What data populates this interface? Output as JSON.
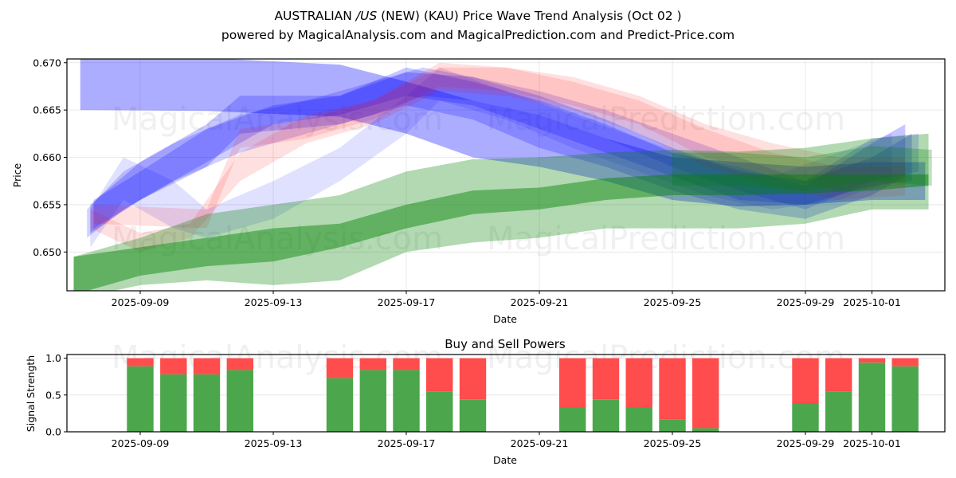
{
  "header": {
    "title": "AUSTRALIAN /US (NEW) (KAU) Price Wave Trend Analysis (Oct 02 )",
    "title_prefix": "AUSTRALIAN ",
    "title_italic": "/US",
    "title_suffix": " (NEW) (KAU) Price Wave Trend Analysis (Oct 02 )",
    "subtitle": "powered by MagicalAnalysis.com and MagicalPrediction.com and Predict-Price.com"
  },
  "watermarks": [
    "MagicalAnalysis.com",
    "MagicalPrediction.com"
  ],
  "colors": {
    "blue": "#0000ff",
    "red": "#ff0000",
    "green": "#008000",
    "buy": "#4ca64c",
    "sell": "#ff4c4c"
  },
  "chart_data": [
    {
      "type": "area",
      "title": "",
      "xlabel": "Date",
      "ylabel": "Price",
      "x_start": "2025-09-06.8",
      "x_end": "2025-10-03.2",
      "ylim": [
        0.6459,
        0.6704
      ],
      "grid": true,
      "x_ticks": [
        "2025-09-09",
        "2025-09-13",
        "2025-09-17",
        "2025-09-21",
        "2025-09-25",
        "2025-09-29",
        "2025-10-01"
      ],
      "y_ticks": [
        "0.650",
        "0.655",
        "0.660",
        "0.665",
        "0.670"
      ],
      "note": "Each band is [day_offset_from_2025-09-07, low, high]",
      "bands": [
        {
          "name": "blue-wide-top",
          "color": "blue",
          "opacity": 0.32,
          "points": [
            [
              0.2,
              0.665,
              0.6705
            ],
            [
              4,
              0.6649,
              0.6705
            ],
            [
              8,
              0.6643,
              0.6698
            ],
            [
              10,
              0.6625,
              0.668
            ],
            [
              12,
              0.66,
              0.666
            ],
            [
              14,
              0.659,
              0.6645
            ],
            [
              16,
              0.6575,
              0.662
            ],
            [
              18,
              0.6555,
              0.66
            ],
            [
              20,
              0.6548,
              0.6595
            ],
            [
              22,
              0.655,
              0.659
            ],
            [
              24,
              0.6555,
              0.6595
            ],
            [
              25.6,
              0.6555,
              0.6595
            ]
          ]
        },
        {
          "name": "blue-trend-1",
          "color": "blue",
          "opacity": 0.22,
          "points": [
            [
              0.5,
              0.652,
              0.655
            ],
            [
              2,
              0.6555,
              0.6595
            ],
            [
              4,
              0.659,
              0.6635
            ],
            [
              5,
              0.6625,
              0.6665
            ],
            [
              8,
              0.6635,
              0.6665
            ],
            [
              10,
              0.6655,
              0.6695
            ],
            [
              12,
              0.664,
              0.668
            ],
            [
              14,
              0.661,
              0.666
            ],
            [
              16,
              0.659,
              0.6635
            ],
            [
              18,
              0.6565,
              0.6605
            ],
            [
              20,
              0.6545,
              0.659
            ],
            [
              22,
              0.6535,
              0.657
            ],
            [
              24,
              0.656,
              0.6615
            ],
            [
              25,
              0.658,
              0.6635
            ]
          ]
        },
        {
          "name": "blue-trend-2",
          "color": "blue",
          "opacity": 0.22,
          "points": [
            [
              0.6,
              0.6525,
              0.6555
            ],
            [
              2,
              0.6555,
              0.6585
            ],
            [
              4,
              0.6595,
              0.663
            ],
            [
              6,
              0.6635,
              0.6655
            ],
            [
              8,
              0.6645,
              0.6665
            ],
            [
              10,
              0.6665,
              0.669
            ],
            [
              12,
              0.6655,
              0.6685
            ],
            [
              14,
              0.663,
              0.6665
            ],
            [
              16,
              0.6605,
              0.664
            ],
            [
              18,
              0.658,
              0.661
            ],
            [
              20,
              0.6555,
              0.6585
            ],
            [
              22,
              0.655,
              0.6575
            ],
            [
              24,
              0.657,
              0.66
            ],
            [
              25.2,
              0.6575,
              0.6625
            ]
          ]
        },
        {
          "name": "blue-trend-3",
          "color": "blue",
          "opacity": 0.18,
          "points": [
            [
              0.4,
              0.6515,
              0.6545
            ],
            [
              1.5,
              0.6545,
              0.6585
            ],
            [
              3,
              0.6575,
              0.6615
            ],
            [
              5,
              0.6605,
              0.6645
            ],
            [
              7,
              0.6625,
              0.666
            ],
            [
              9,
              0.6645,
              0.668
            ],
            [
              10.5,
              0.6665,
              0.6695
            ],
            [
              12,
              0.666,
              0.6685
            ],
            [
              14,
              0.6645,
              0.667
            ],
            [
              16,
              0.662,
              0.665
            ],
            [
              18,
              0.659,
              0.6625
            ],
            [
              20,
              0.6565,
              0.66
            ],
            [
              22,
              0.6545,
              0.6575
            ],
            [
              24,
              0.6575,
              0.662
            ],
            [
              25.4,
              0.6585,
              0.6625
            ]
          ]
        },
        {
          "name": "blue-faint-1",
          "color": "blue",
          "opacity": 0.12,
          "points": [
            [
              0.5,
              0.6505,
              0.6545
            ],
            [
              1.5,
              0.6555,
              0.66
            ],
            [
              3,
              0.6525,
              0.6575
            ],
            [
              4,
              0.6515,
              0.6545
            ],
            [
              6,
              0.6535,
              0.6575
            ],
            [
              8,
              0.6575,
              0.661
            ],
            [
              10,
              0.6625,
              0.6665
            ],
            [
              11,
              0.666,
              0.6695
            ],
            [
              13,
              0.664,
              0.667
            ],
            [
              15,
              0.661,
              0.6645
            ],
            [
              17,
              0.6585,
              0.662
            ],
            [
              19,
              0.656,
              0.6595
            ],
            [
              21,
              0.6545,
              0.658
            ],
            [
              23,
              0.6555,
              0.6605
            ],
            [
              24.6,
              0.6575,
              0.6625
            ]
          ]
        },
        {
          "name": "pink-1",
          "color": "red",
          "opacity": 0.12,
          "points": [
            [
              0.5,
              0.6525,
              0.6545
            ],
            [
              2,
              0.65,
              0.652
            ],
            [
              3.5,
              0.6515,
              0.653
            ],
            [
              5,
              0.6575,
              0.6605
            ],
            [
              7,
              0.6615,
              0.6645
            ],
            [
              9,
              0.6635,
              0.666
            ],
            [
              11,
              0.667,
              0.6695
            ],
            [
              13,
              0.6665,
              0.6695
            ],
            [
              15,
              0.665,
              0.668
            ],
            [
              17,
              0.6625,
              0.666
            ],
            [
              19,
              0.659,
              0.663
            ],
            [
              21,
              0.657,
              0.6605
            ],
            [
              23,
              0.6555,
              0.659
            ],
            [
              25,
              0.656,
              0.659
            ]
          ]
        },
        {
          "name": "pink-2",
          "color": "red",
          "opacity": 0.12,
          "points": [
            [
              0.6,
              0.653,
              0.655
            ],
            [
              4,
              0.6525,
              0.6545
            ],
            [
              5,
              0.661,
              0.663
            ],
            [
              7,
              0.662,
              0.664
            ],
            [
              9,
              0.664,
              0.666
            ],
            [
              11,
              0.6675,
              0.67
            ],
            [
              13,
              0.667,
              0.6695
            ],
            [
              15,
              0.6655,
              0.6685
            ],
            [
              17,
              0.6635,
              0.6665
            ],
            [
              19,
              0.66,
              0.6635
            ],
            [
              21,
              0.658,
              0.6615
            ],
            [
              23,
              0.6565,
              0.66
            ],
            [
              25,
              0.657,
              0.66
            ]
          ]
        },
        {
          "name": "green-wide",
          "color": "green",
          "opacity": 0.3,
          "points": [
            [
              0,
              0.645,
              0.6495
            ],
            [
              2,
              0.6465,
              0.6515
            ],
            [
              4,
              0.647,
              0.654
            ],
            [
              6,
              0.6465,
              0.655
            ],
            [
              8,
              0.647,
              0.656
            ],
            [
              10,
              0.65,
              0.6585
            ],
            [
              12,
              0.651,
              0.6598
            ],
            [
              14,
              0.6515,
              0.66
            ],
            [
              16,
              0.6525,
              0.6605
            ],
            [
              18,
              0.6525,
              0.6608
            ],
            [
              20,
              0.6525,
              0.6606
            ],
            [
              22,
              0.653,
              0.661
            ],
            [
              24,
              0.6545,
              0.662
            ],
            [
              25.7,
              0.6545,
              0.6625
            ]
          ]
        },
        {
          "name": "green-core",
          "color": "green",
          "opacity": 0.45,
          "points": [
            [
              0,
              0.6455,
              0.6495
            ],
            [
              2,
              0.6475,
              0.6505
            ],
            [
              4,
              0.6485,
              0.6515
            ],
            [
              6,
              0.649,
              0.6525
            ],
            [
              8,
              0.6505,
              0.653
            ],
            [
              10,
              0.6525,
              0.655
            ],
            [
              12,
              0.654,
              0.6565
            ],
            [
              14,
              0.6545,
              0.6568
            ],
            [
              16,
              0.6555,
              0.6578
            ],
            [
              18,
              0.656,
              0.6582
            ],
            [
              20,
              0.656,
              0.6582
            ],
            [
              22,
              0.6562,
              0.6582
            ],
            [
              24,
              0.6565,
              0.6582
            ],
            [
              25.7,
              0.657,
              0.6582
            ]
          ]
        },
        {
          "name": "green-upper",
          "color": "green",
          "opacity": 0.25,
          "points": [
            [
              18,
              0.657,
              0.6605
            ],
            [
              20,
              0.657,
              0.6605
            ],
            [
              22,
              0.6565,
              0.66
            ],
            [
              24,
              0.6575,
              0.6612
            ],
            [
              25.8,
              0.657,
              0.6608
            ]
          ]
        }
      ]
    },
    {
      "type": "bar",
      "title": "Buy and Sell Powers",
      "xlabel": "Date",
      "ylabel": "Signal Strength",
      "ylim": [
        0,
        1.05
      ],
      "grid": true,
      "x_ticks": [
        "2025-09-09",
        "2025-09-13",
        "2025-09-17",
        "2025-09-21",
        "2025-09-25",
        "2025-09-29",
        "2025-10-01"
      ],
      "y_ticks": [
        "0.0",
        "0.5",
        "1.0"
      ],
      "categories": [
        "2025-09-09",
        "2025-09-10",
        "2025-09-11",
        "2025-09-12",
        "2025-09-15",
        "2025-09-16",
        "2025-09-17",
        "2025-09-18",
        "2025-09-19",
        "2025-09-22",
        "2025-09-23",
        "2025-09-24",
        "2025-09-25",
        "2025-09-26",
        "2025-09-29",
        "2025-09-30",
        "2025-10-01",
        "2025-10-02"
      ],
      "day_offsets": [
        2,
        3,
        4,
        5,
        8,
        9,
        10,
        11,
        12,
        15,
        16,
        17,
        18,
        19,
        22,
        23,
        24,
        25
      ],
      "series": [
        {
          "name": "Buy",
          "color": "buy",
          "values": [
            0.89,
            0.78,
            0.78,
            0.84,
            0.73,
            0.84,
            0.84,
            0.55,
            0.44,
            0.33,
            0.44,
            0.33,
            0.17,
            0.05,
            0.39,
            0.55,
            0.94,
            0.89
          ]
        },
        {
          "name": "Sell",
          "color": "sell",
          "values": [
            0.11,
            0.22,
            0.22,
            0.16,
            0.27,
            0.16,
            0.16,
            0.45,
            0.56,
            0.67,
            0.56,
            0.67,
            0.83,
            0.95,
            0.61,
            0.45,
            0.06,
            0.11
          ]
        }
      ]
    }
  ]
}
